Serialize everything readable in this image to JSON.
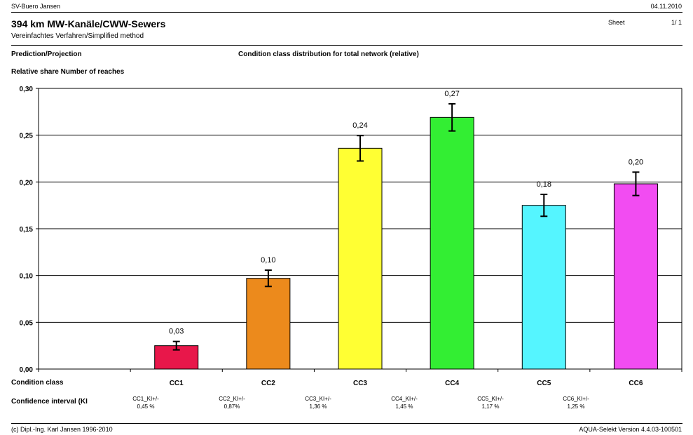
{
  "header": {
    "company": "SV-Buero Jansen",
    "date": "04.11.2010",
    "title": "394 km MW-Kanäle/CWW-Sewers",
    "method": "Vereinfachtes Verfahren/Simplified method",
    "sheet_label": "Sheet",
    "sheet_value": "1/ 1",
    "left_heading": "Prediction/Projection",
    "center_heading": "Condition class distribution for total network (relative)",
    "y_heading": "Relative share Number of reaches"
  },
  "rows": {
    "condition_label": "Condition class",
    "confidence_label": "Confidence interval (KI"
  },
  "confidence": [
    {
      "name": "CC1_KI+/-",
      "pct": "0,45 %"
    },
    {
      "name": "CC2_KI+/-",
      "pct": "0,87%"
    },
    {
      "name": "CC3_KI+/-",
      "pct": "1,36 %"
    },
    {
      "name": "CC4_KI+/-",
      "pct": "1,45 %"
    },
    {
      "name": "CC5_KI+/-",
      "pct": "1,17 %"
    },
    {
      "name": "CC6_KI+/-",
      "pct": "1,25 %"
    }
  ],
  "footer": {
    "copyright": "(c) Dipl.-Ing. Karl Jansen 1996-2010",
    "version": "AQUA-Selekt Version 4.4.03-100501"
  },
  "chart_data": {
    "type": "bar",
    "categories": [
      "CC1",
      "CC2",
      "CC3",
      "CC4",
      "CC5",
      "CC6"
    ],
    "values": [
      0.025,
      0.097,
      0.236,
      0.269,
      0.175,
      0.198
    ],
    "labels": [
      "0,03",
      "0,10",
      "0,24",
      "0,27",
      "0,18",
      "0,20"
    ],
    "error": [
      0.0045,
      0.0087,
      0.0136,
      0.0145,
      0.0117,
      0.0125
    ],
    "colors": [
      "#e8174a",
      "#ec8a1c",
      "#ffff33",
      "#33ee33",
      "#55f5ff",
      "#f24cf2"
    ],
    "yticks": [
      "0,00",
      "0,05",
      "0,10",
      "0,15",
      "0,20",
      "0,25",
      "0,30"
    ],
    "ylim": [
      0,
      0.3
    ],
    "grid": true,
    "xlabel": "",
    "ylabel": "Relative share Number of reaches"
  }
}
